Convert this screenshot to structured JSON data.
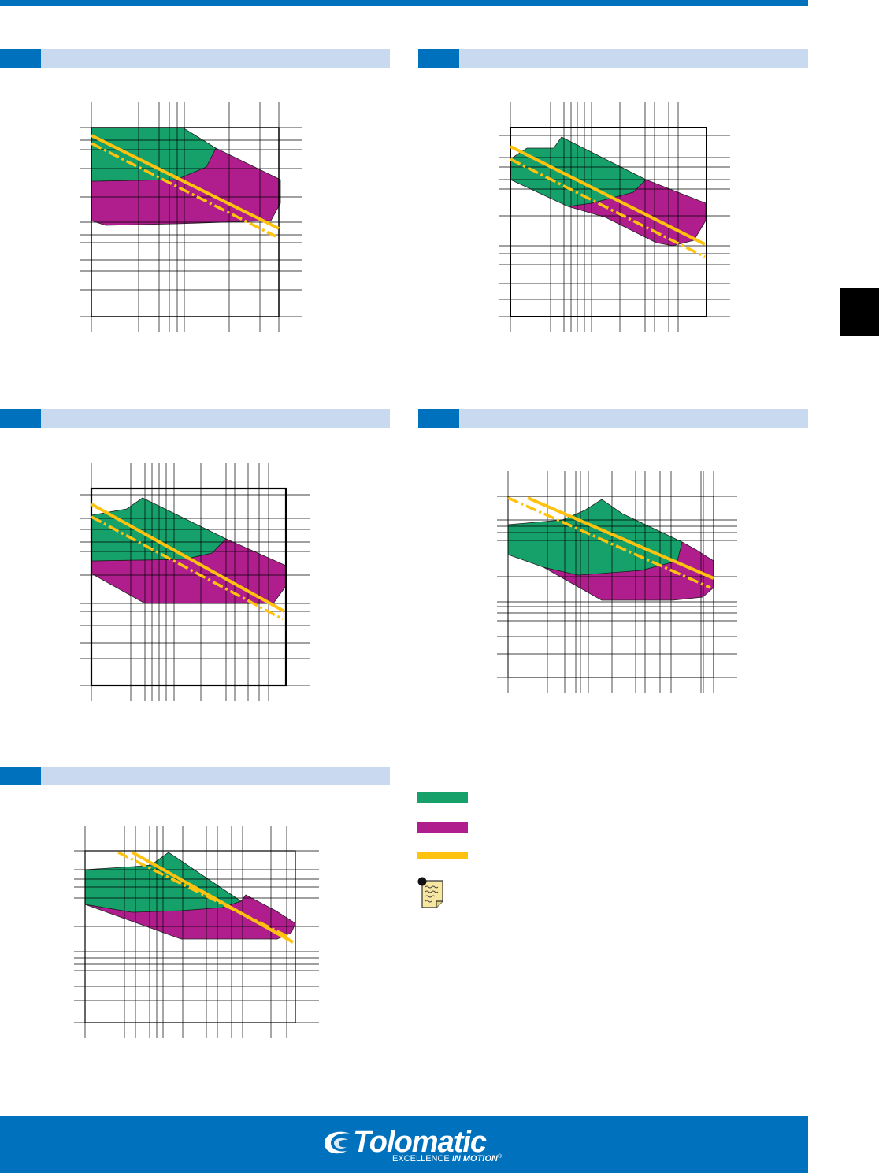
{
  "colors": {
    "brand_blue": "#0071bc",
    "header_bg": "#c9daf0",
    "green": "#16a06a",
    "magenta": "#b01e8e",
    "yellow": "#ffc20e"
  },
  "footer": {
    "brand_wordmark": "Tolomatic",
    "tagline_plain": "EXCELLENCE ",
    "tagline_emphasis": "IN MOTION",
    "trademark": "®"
  },
  "legend": [
    {
      "color": "green",
      "icon": "green-swatch"
    },
    {
      "color": "magenta",
      "icon": "magenta-swatch"
    },
    {
      "color": "yellow",
      "icon": "yellow-swatch"
    }
  ],
  "note_icon": "note-icon",
  "chart_data": [
    {
      "type": "area",
      "scale": "log-log",
      "grid": true
    },
    {
      "type": "area",
      "scale": "log-log",
      "grid": true
    },
    {
      "type": "area",
      "scale": "log-log",
      "grid": true
    },
    {
      "type": "area",
      "scale": "log-log",
      "grid": true
    },
    {
      "type": "area",
      "scale": "log-log",
      "grid": true
    }
  ]
}
